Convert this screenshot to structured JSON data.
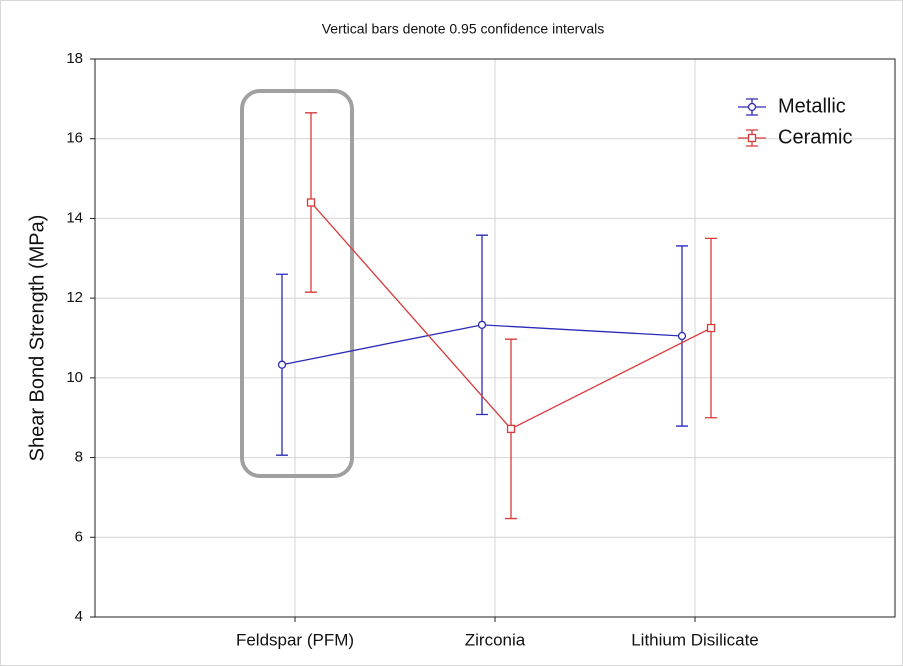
{
  "chart_data": {
    "type": "line",
    "title": "Vertical bars denote 0.95 confidence intervals",
    "ylabel": "Shear Bond Strength (MPa)",
    "categories": [
      "Feldspar (PFM)",
      "Zirconia",
      "Lithium Disilicate"
    ],
    "series": [
      {
        "name": "Metallic",
        "color": "#2b2bb8",
        "marker": "circle",
        "values": [
          10.33,
          11.33,
          11.05
        ],
        "errors": [
          2.27,
          2.25,
          2.26
        ]
      },
      {
        "name": "Ceramic",
        "color": "#d83a3a",
        "marker": "square",
        "values": [
          14.4,
          8.72,
          11.25
        ],
        "errors": [
          2.25,
          2.25,
          2.25
        ]
      }
    ],
    "ylim": [
      4,
      18
    ],
    "yticks": [
      4,
      6,
      8,
      10,
      12,
      14,
      16,
      18
    ],
    "grid": true,
    "legend": "upper right"
  }
}
